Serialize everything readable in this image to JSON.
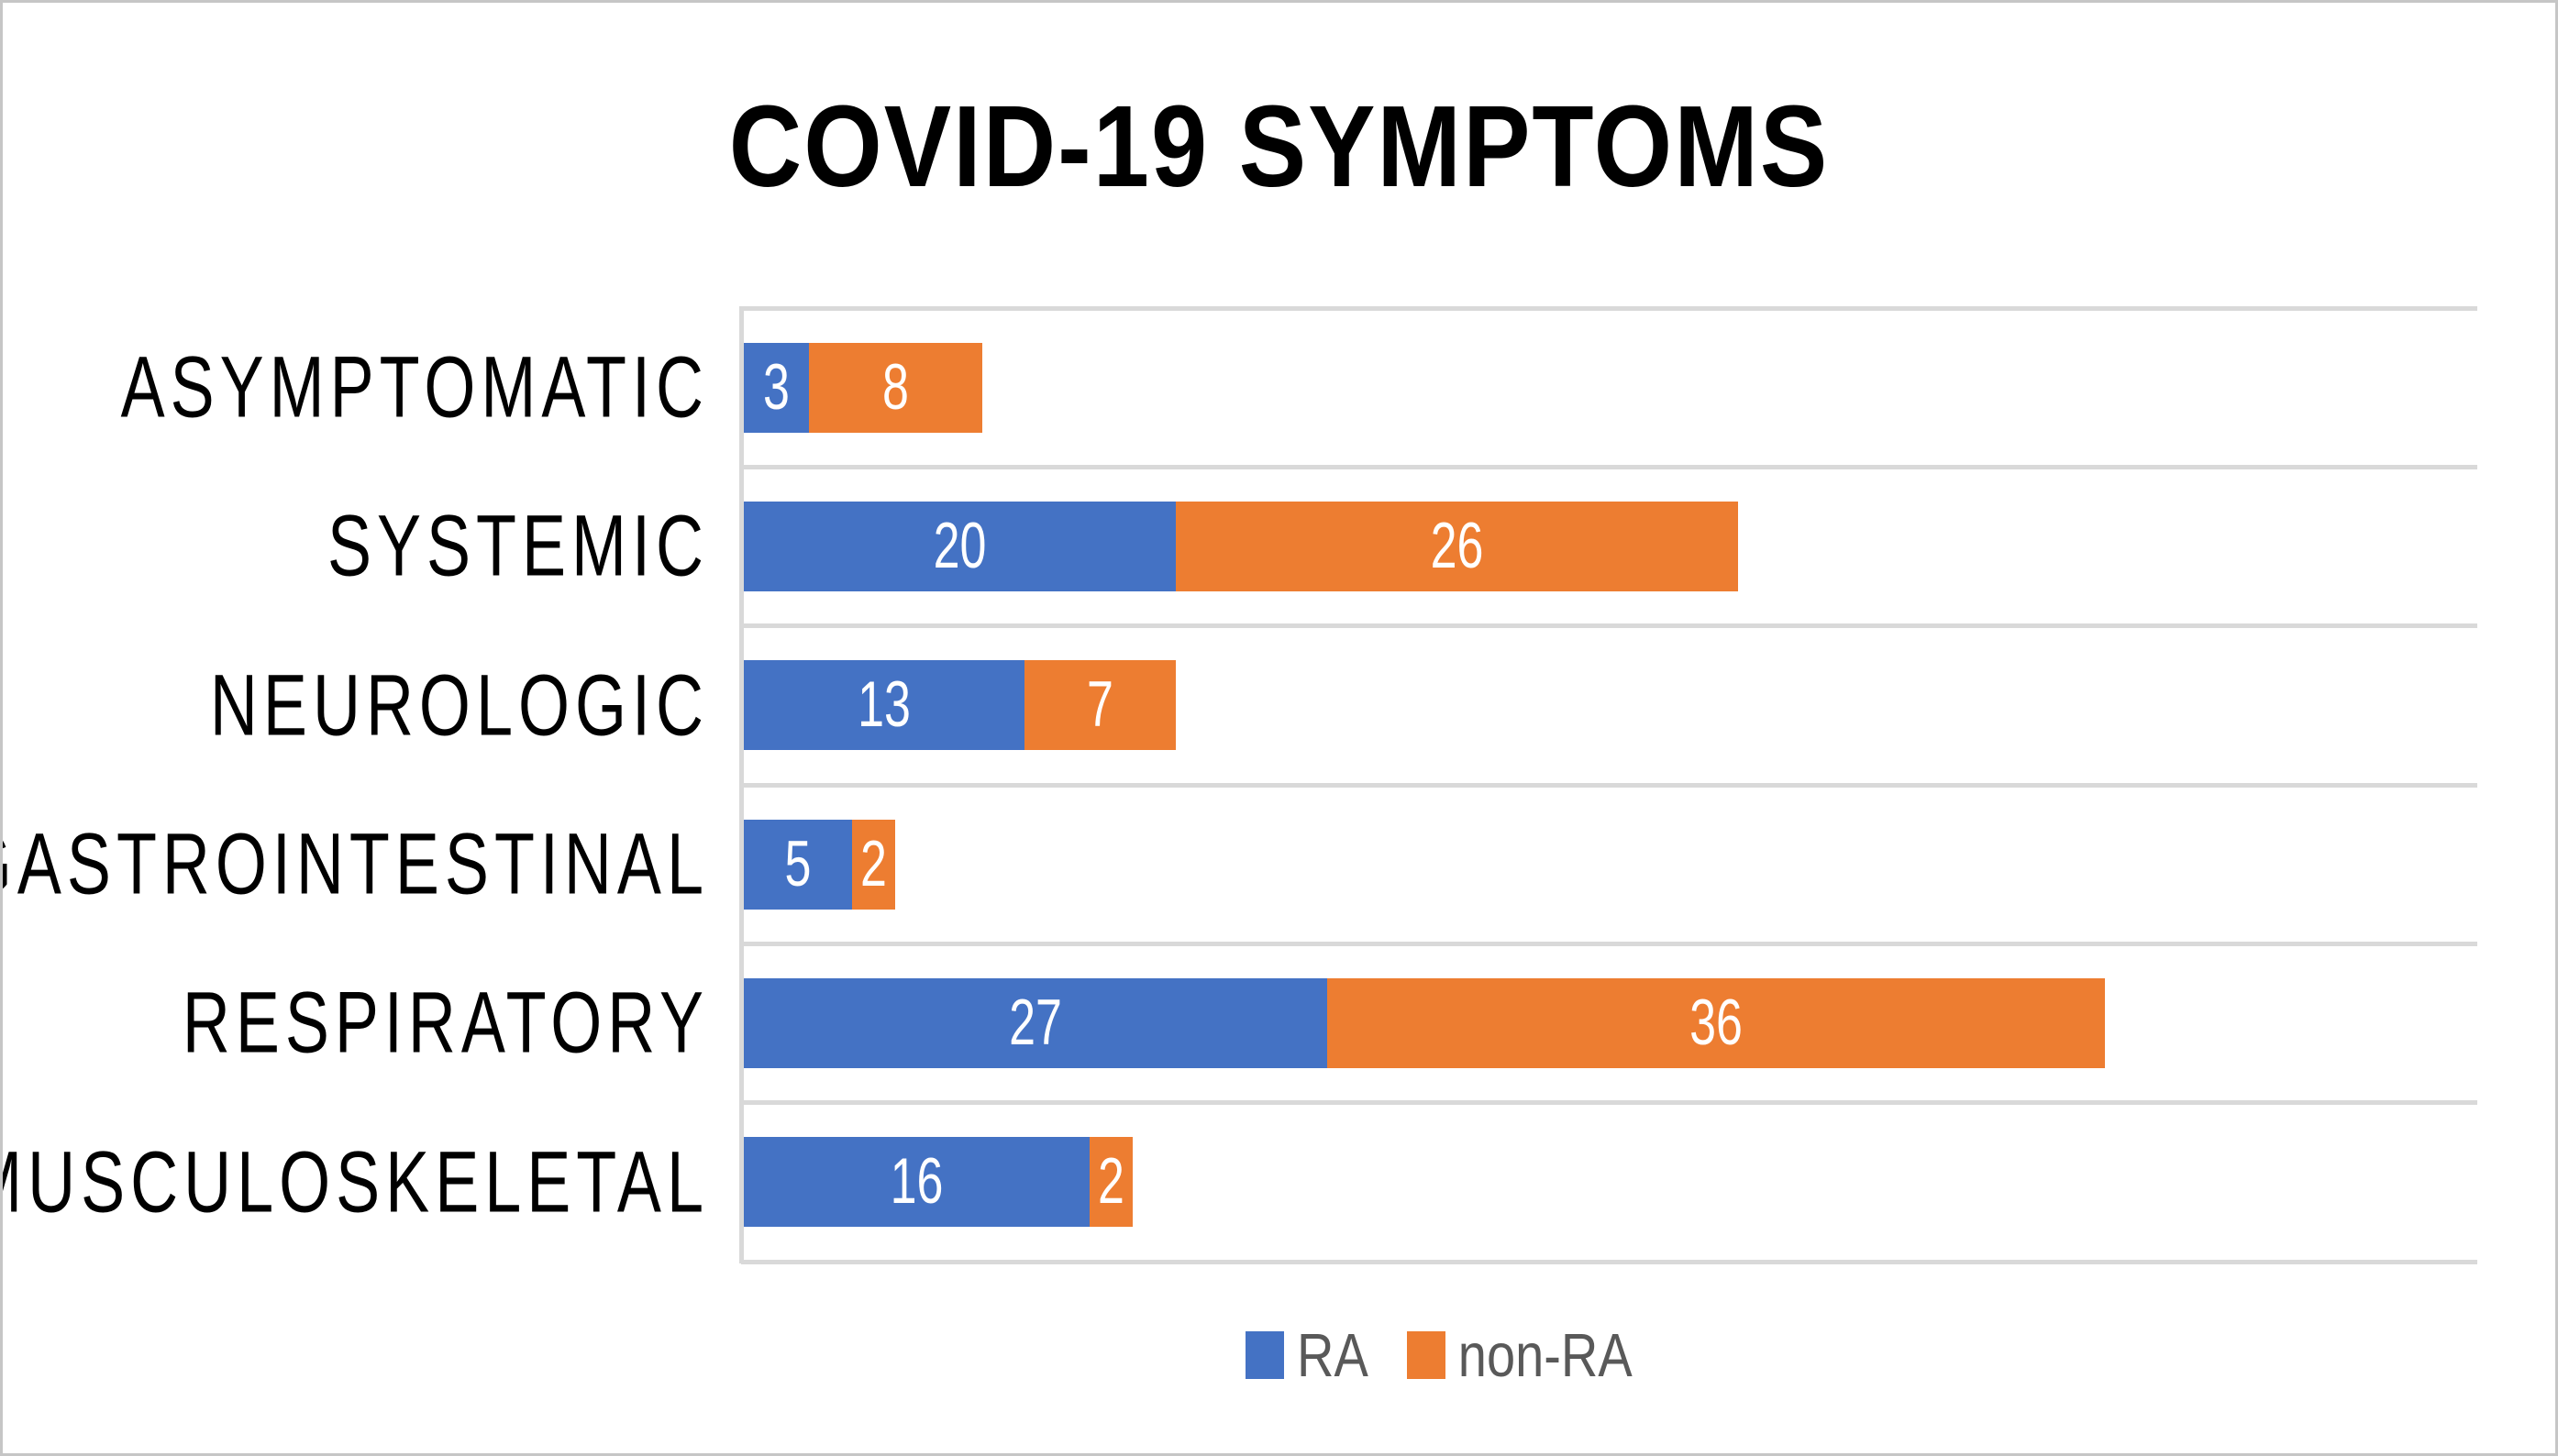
{
  "frame": {
    "background_color": "#FFFFFF",
    "border_color": "#C6C6C6"
  },
  "chart_data": {
    "type": "bar",
    "orientation": "horizontal",
    "stacked": true,
    "title": "COVID-19 SYMPTOMS",
    "title_color": "#000000",
    "categories": [
      "ASYMPTOMATIC",
      "SYSTEMIC",
      "NEUROLOGIC",
      "GASTROINTESTINAL",
      "RESPIRATORY",
      "MUSCULOSKELETAL"
    ],
    "series": [
      {
        "name": "RA",
        "color": "#4472C4",
        "values": [
          3,
          20,
          13,
          5,
          27,
          16
        ]
      },
      {
        "name": "non-RA",
        "color": "#ED7D31",
        "values": [
          8,
          26,
          7,
          2,
          36,
          2
        ]
      }
    ],
    "data_labels": {
      "position": "inside-center",
      "color": "#FFFFFF"
    },
    "xlabel": "",
    "ylabel": "",
    "xlim": [
      0,
      80
    ],
    "x_axis_ticks_visible": false,
    "gridlines": {
      "category_separators": true,
      "color": "#D9D9D9"
    },
    "axis_line_color": "#D9D9D9",
    "legend": {
      "position": "bottom",
      "text_color": "#595959",
      "entries": [
        "RA",
        "non-RA"
      ]
    }
  }
}
